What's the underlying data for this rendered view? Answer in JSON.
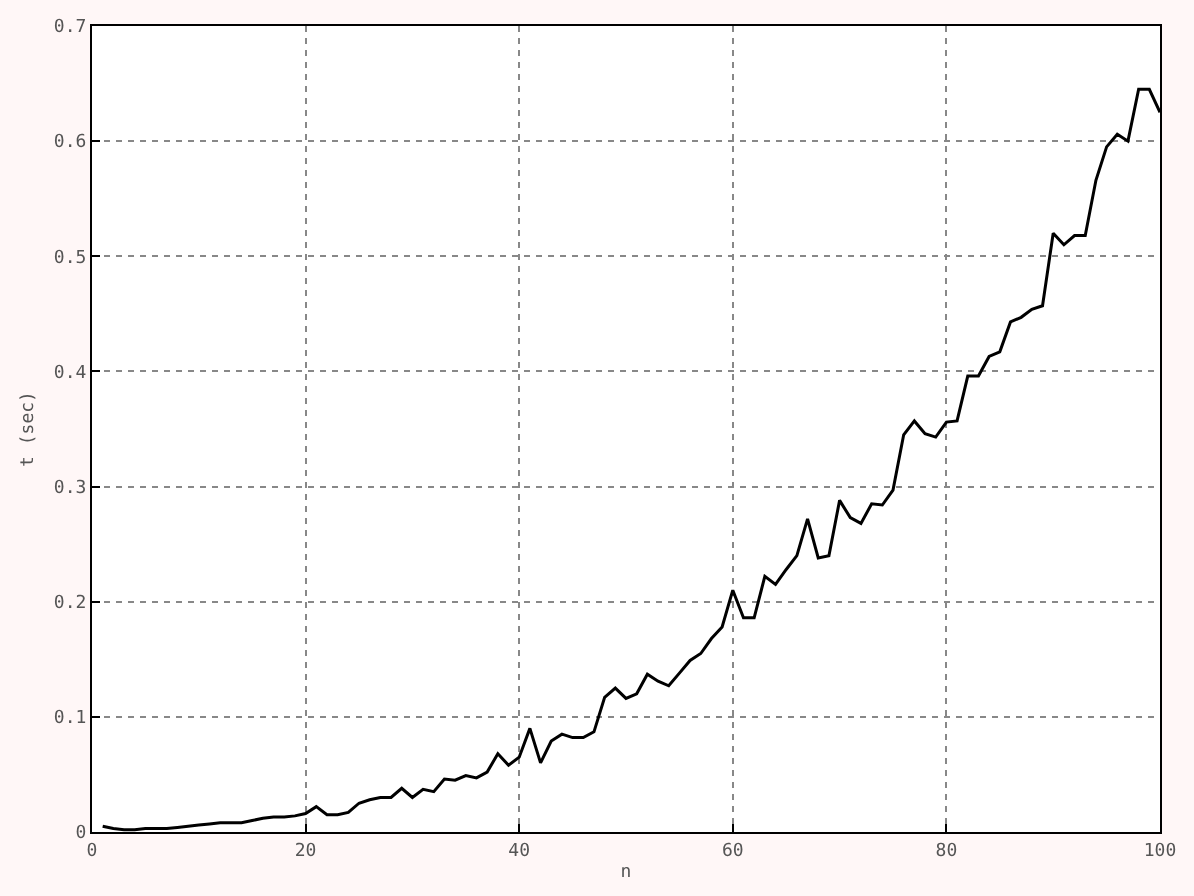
{
  "chart_data": {
    "type": "line",
    "xlabel": "n",
    "ylabel": "t (sec)",
    "x": [
      1,
      2,
      3,
      4,
      5,
      6,
      7,
      8,
      9,
      10,
      11,
      12,
      13,
      14,
      15,
      16,
      17,
      18,
      19,
      20,
      21,
      22,
      23,
      24,
      25,
      26,
      27,
      28,
      29,
      30,
      31,
      32,
      33,
      34,
      35,
      36,
      37,
      38,
      39,
      40,
      41,
      42,
      43,
      44,
      45,
      46,
      47,
      48,
      49,
      50,
      51,
      52,
      53,
      54,
      55,
      56,
      57,
      58,
      59,
      60,
      61,
      62,
      63,
      64,
      65,
      66,
      67,
      68,
      69,
      70,
      71,
      72,
      73,
      74,
      75,
      76,
      77,
      78,
      79,
      80,
      81,
      82,
      83,
      84,
      85,
      86,
      87,
      88,
      89,
      90,
      91,
      92,
      93,
      94,
      95,
      96,
      97,
      98,
      99,
      100
    ],
    "series": [
      {
        "color": "#000000",
        "values": [
          0.005,
          0.003,
          0.002,
          0.002,
          0.003,
          0.003,
          0.003,
          0.004,
          0.005,
          0.006,
          0.007,
          0.008,
          0.008,
          0.008,
          0.01,
          0.012,
          0.013,
          0.013,
          0.014,
          0.016,
          0.022,
          0.015,
          0.015,
          0.017,
          0.025,
          0.028,
          0.03,
          0.03,
          0.038,
          0.03,
          0.037,
          0.035,
          0.046,
          0.045,
          0.049,
          0.047,
          0.052,
          0.068,
          0.058,
          0.065,
          0.09,
          0.06,
          0.079,
          0.085,
          0.082,
          0.082,
          0.087,
          0.117,
          0.125,
          0.116,
          0.12,
          0.137,
          0.131,
          0.127,
          0.138,
          0.149,
          0.155,
          0.168,
          0.178,
          0.21,
          0.186,
          0.186,
          0.222,
          0.215,
          0.228,
          0.24,
          0.272,
          0.238,
          0.24,
          0.288,
          0.273,
          0.268,
          0.285,
          0.284,
          0.297,
          0.345,
          0.357,
          0.346,
          0.343,
          0.356,
          0.357,
          0.396,
          0.396,
          0.413,
          0.417,
          0.443,
          0.447,
          0.454,
          0.457,
          0.52,
          0.51,
          0.518,
          0.518,
          0.566,
          0.595,
          0.606,
          0.6,
          0.645,
          0.645,
          0.625
        ]
      }
    ],
    "xlim": [
      0,
      100
    ],
    "xticks": [
      0,
      20,
      40,
      60,
      80,
      100
    ],
    "ylim": [
      0,
      0.7
    ],
    "yticks": [
      0,
      0.1,
      0.2,
      0.3,
      0.4,
      0.5,
      0.6,
      0.7
    ],
    "grid": true,
    "marker": "none",
    "line_style": "solid"
  }
}
